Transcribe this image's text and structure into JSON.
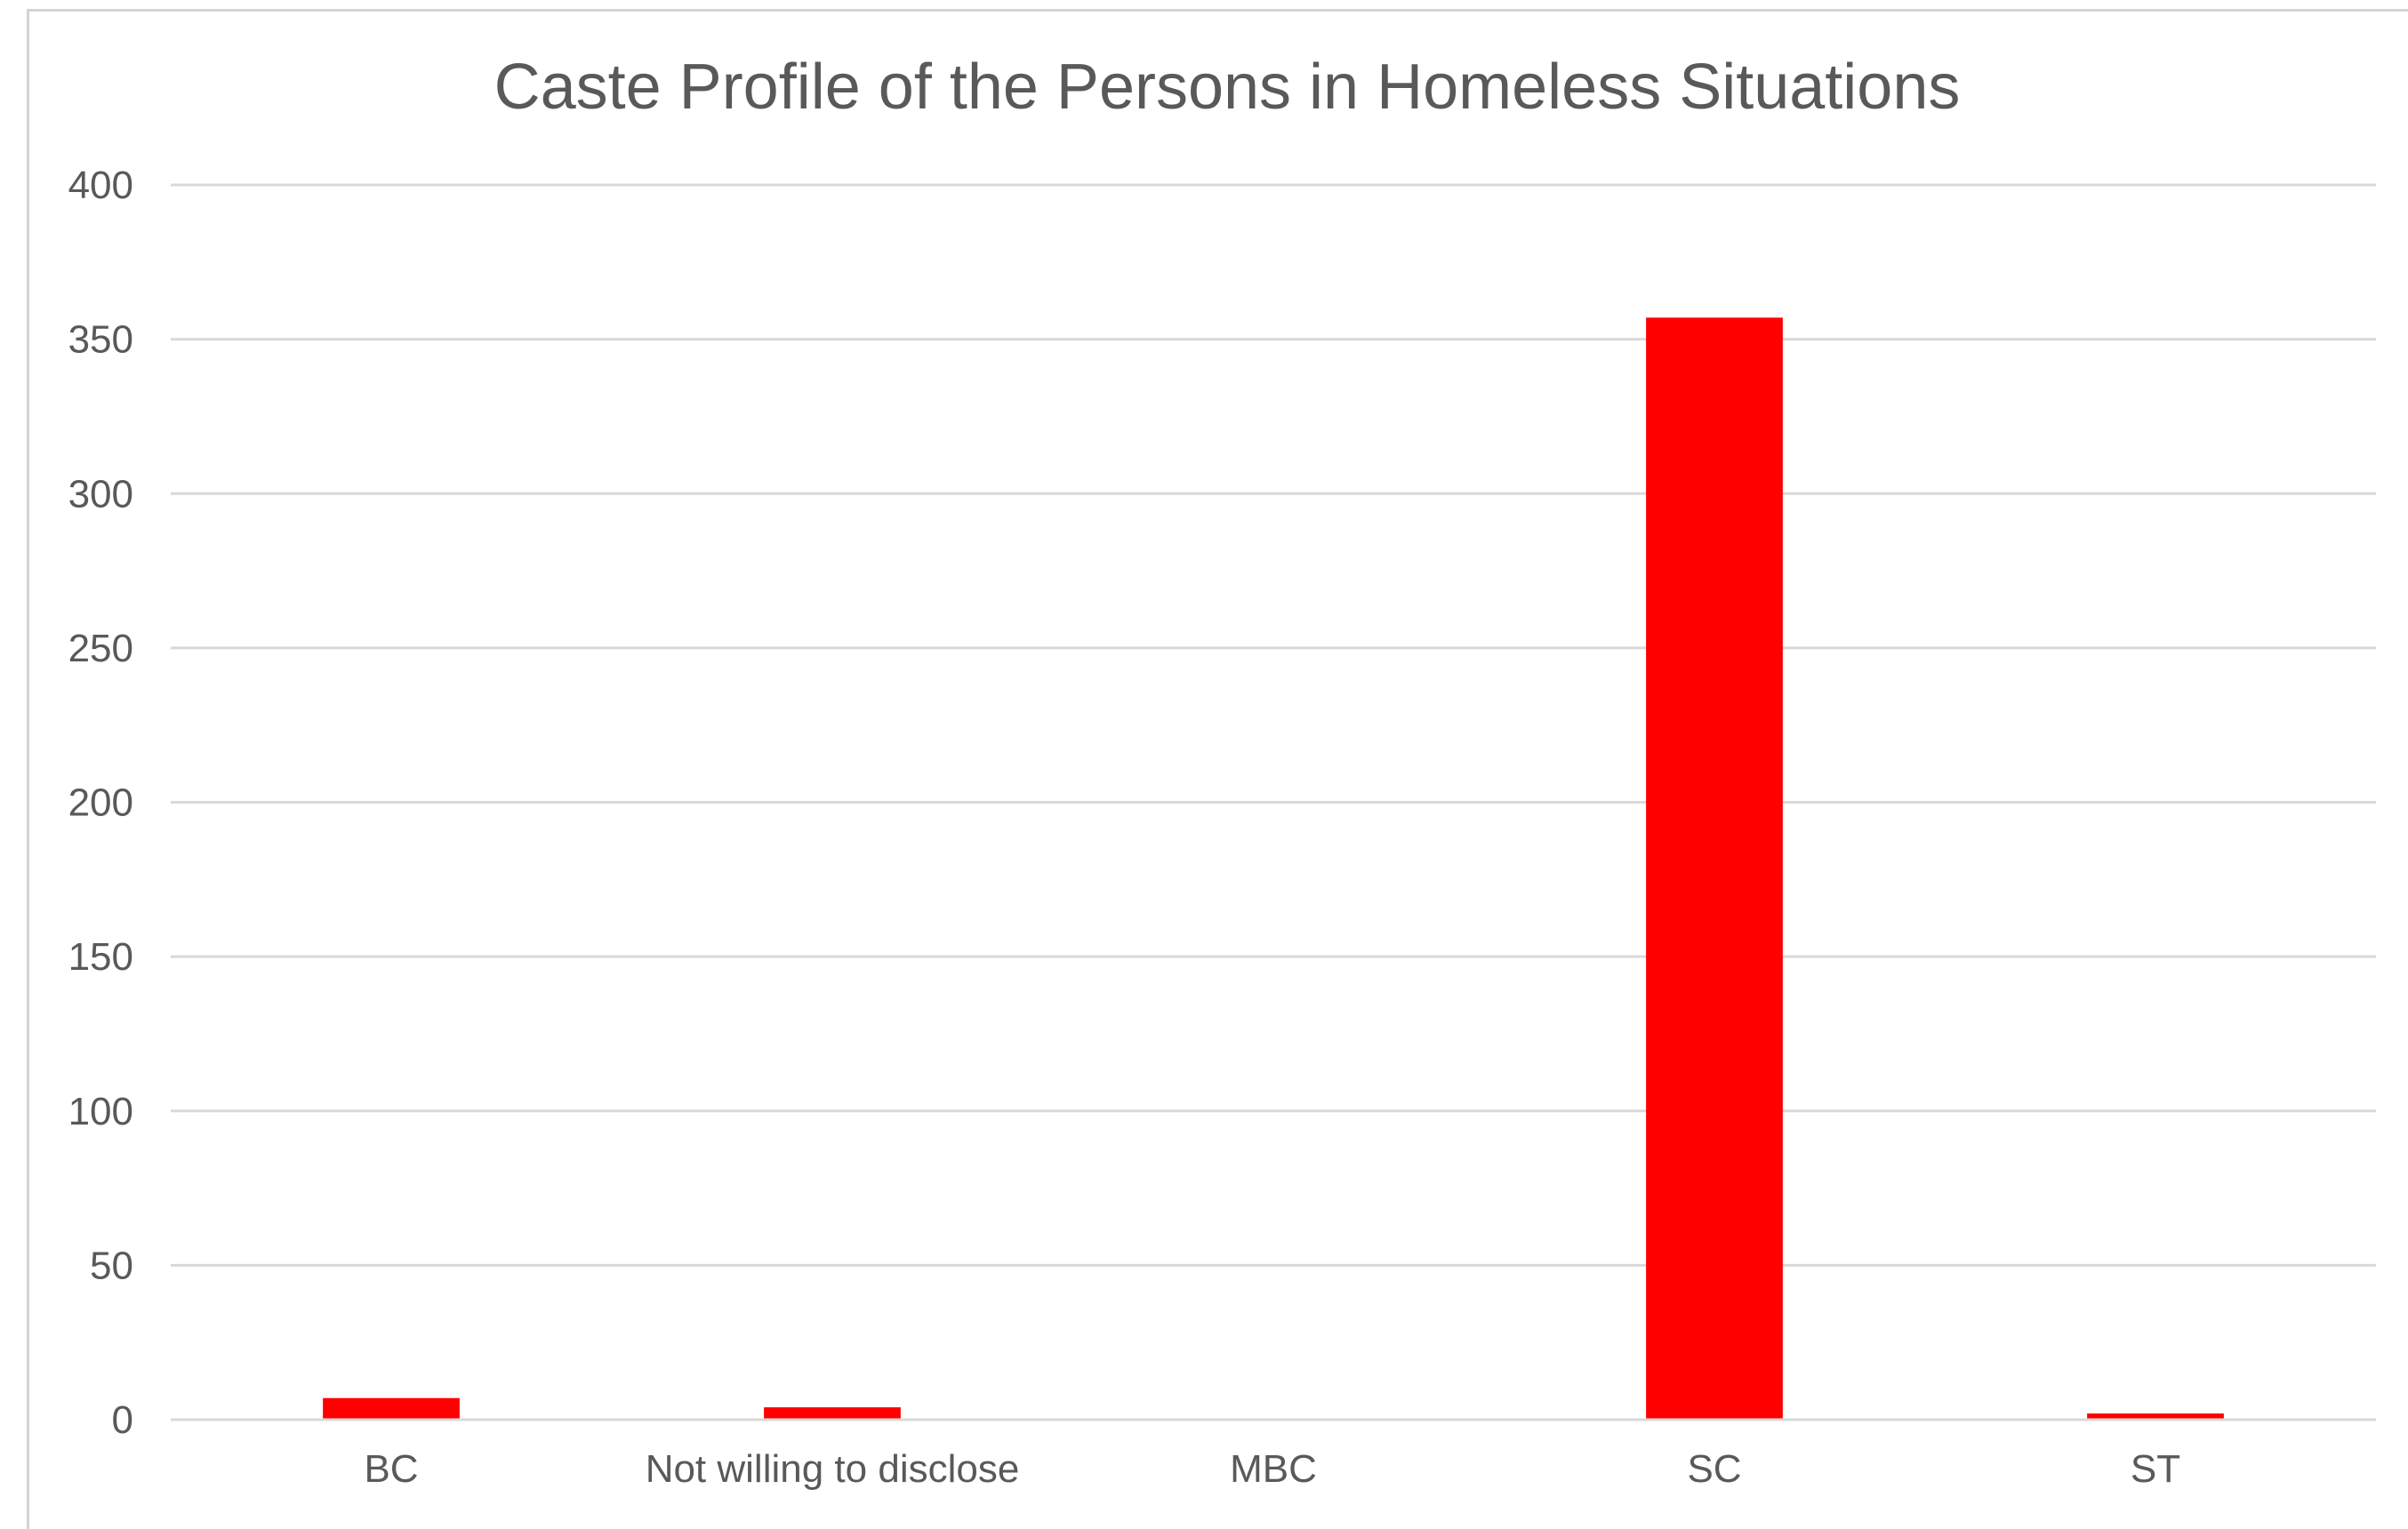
{
  "chart_data": {
    "type": "bar",
    "title": "Caste Profile of the Persons in Homeless Situations",
    "xlabel": "",
    "ylabel": "",
    "categories": [
      "BC",
      "Not willing to disclose",
      "MBC",
      "SC",
      "ST"
    ],
    "values": [
      7,
      4,
      0,
      357,
      2
    ],
    "ylim": [
      0,
      400
    ],
    "yticks": [
      "0",
      "50",
      "100",
      "150",
      "200",
      "250",
      "300",
      "350",
      "400"
    ],
    "grid": true,
    "legend": "none",
    "bar_color": "#ff0000",
    "text_color": "#595959",
    "grid_color": "#d9d9d9"
  }
}
